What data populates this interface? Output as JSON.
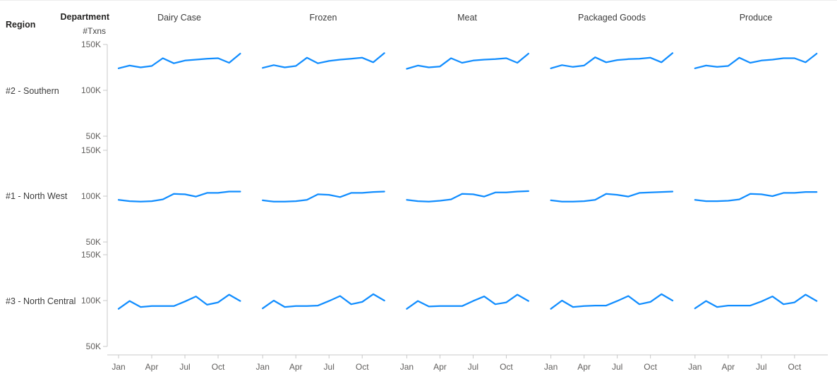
{
  "header": {
    "region_label": "Region",
    "department_label": "Department",
    "y_axis_title": "#Txns"
  },
  "colors": {
    "line": "#118DFF",
    "axis": "#c8c8c8",
    "tick_text": "#605E5C",
    "header_text": "#252423",
    "background": "#FFFFFF"
  },
  "chart_data": {
    "type": "line",
    "title": "",
    "ylabel": "#Txns",
    "xlabel": "",
    "legend": "none",
    "grid": "off",
    "facet_rows": [
      "#2 - Southern",
      "#1 - North West",
      "#3 - North Central"
    ],
    "facet_cols": [
      "Dairy Case",
      "Frozen",
      "Meat",
      "Packaged Goods",
      "Produce"
    ],
    "months": [
      "Jan",
      "Feb",
      "Mar",
      "Apr",
      "May",
      "Jun",
      "Jul",
      "Aug",
      "Sep",
      "Oct",
      "Nov",
      "Dec"
    ],
    "x_tick_months": [
      "Jan",
      "Apr",
      "Jul",
      "Oct"
    ],
    "x_tick_month_indices": [
      0,
      3,
      6,
      9
    ],
    "y_tick_labels": [
      "150K",
      "100K",
      "50K"
    ],
    "y_tick_values_k": [
      150,
      100,
      50
    ],
    "ylim_k": [
      50,
      150
    ],
    "units": "transactions (thousands)",
    "series": [
      {
        "region": "#2 - Southern",
        "department": "Dairy Case",
        "values_k": [
          124,
          127,
          125,
          126.5,
          135,
          129.5,
          132.5,
          133.5,
          134.5,
          135,
          130,
          140
        ]
      },
      {
        "region": "#2 - Southern",
        "department": "Frozen",
        "values_k": [
          124.5,
          127.5,
          125,
          126.5,
          135.5,
          129.5,
          132,
          133.5,
          134.5,
          135.5,
          130.5,
          140.5
        ]
      },
      {
        "region": "#2 - Southern",
        "department": "Meat",
        "values_k": [
          123.5,
          127,
          125,
          126,
          135,
          130,
          132.5,
          133.5,
          134,
          135,
          130,
          140
        ]
      },
      {
        "region": "#2 - Southern",
        "department": "Packaged Goods",
        "values_k": [
          124,
          127.5,
          125.5,
          127,
          136,
          130.5,
          133,
          134,
          134.5,
          135.5,
          130.5,
          140.5
        ]
      },
      {
        "region": "#2 - Southern",
        "department": "Produce",
        "values_k": [
          124,
          127,
          125.5,
          126.5,
          135.5,
          130,
          132.5,
          133.5,
          135,
          135,
          130.5,
          140
        ]
      },
      {
        "region": "#1 - North West",
        "department": "Dairy Case",
        "values_k": [
          96,
          94.5,
          94,
          94.5,
          96.5,
          102.5,
          102,
          99.5,
          103.5,
          103.5,
          105,
          105
        ]
      },
      {
        "region": "#1 - North West",
        "department": "Frozen",
        "values_k": [
          95.5,
          94,
          94,
          94.5,
          96,
          102,
          101.5,
          99,
          103.5,
          103.5,
          104.5,
          105
        ]
      },
      {
        "region": "#1 - North West",
        "department": "Meat",
        "values_k": [
          96,
          94.5,
          94,
          95,
          96.5,
          102.5,
          102,
          99.5,
          104,
          104,
          105,
          105.5
        ]
      },
      {
        "region": "#1 - North West",
        "department": "Packaged Goods",
        "values_k": [
          95.5,
          94,
          94,
          94.5,
          96,
          102.5,
          101.5,
          99.5,
          103.5,
          104,
          104.5,
          105
        ]
      },
      {
        "region": "#1 - North West",
        "department": "Produce",
        "values_k": [
          96,
          94.5,
          94.5,
          95,
          96.5,
          102.5,
          102,
          100,
          103.5,
          103.5,
          104.5,
          104.5
        ]
      },
      {
        "region": "#3 - North Central",
        "department": "Dairy Case",
        "values_k": [
          91,
          99.5,
          93,
          94,
          94,
          94,
          99,
          104.5,
          95.5,
          98,
          106.5,
          99.5
        ]
      },
      {
        "region": "#3 - North Central",
        "department": "Frozen",
        "values_k": [
          91.5,
          100,
          93,
          94,
          94,
          94.5,
          99.5,
          105,
          96,
          98.5,
          107,
          100
        ]
      },
      {
        "region": "#3 - North Central",
        "department": "Meat",
        "values_k": [
          91,
          99.5,
          93.5,
          94,
          94,
          94,
          99.5,
          104.5,
          96,
          98,
          106.5,
          99.5
        ]
      },
      {
        "region": "#3 - North Central",
        "department": "Packaged Goods",
        "values_k": [
          91,
          100,
          93,
          94,
          94.5,
          94.5,
          99.5,
          105,
          96,
          98.5,
          107,
          100
        ]
      },
      {
        "region": "#3 - North Central",
        "department": "Produce",
        "values_k": [
          91.5,
          99.5,
          93,
          94.5,
          94.5,
          94.5,
          99,
          104.5,
          96,
          98,
          106.5,
          99.5
        ]
      }
    ]
  }
}
